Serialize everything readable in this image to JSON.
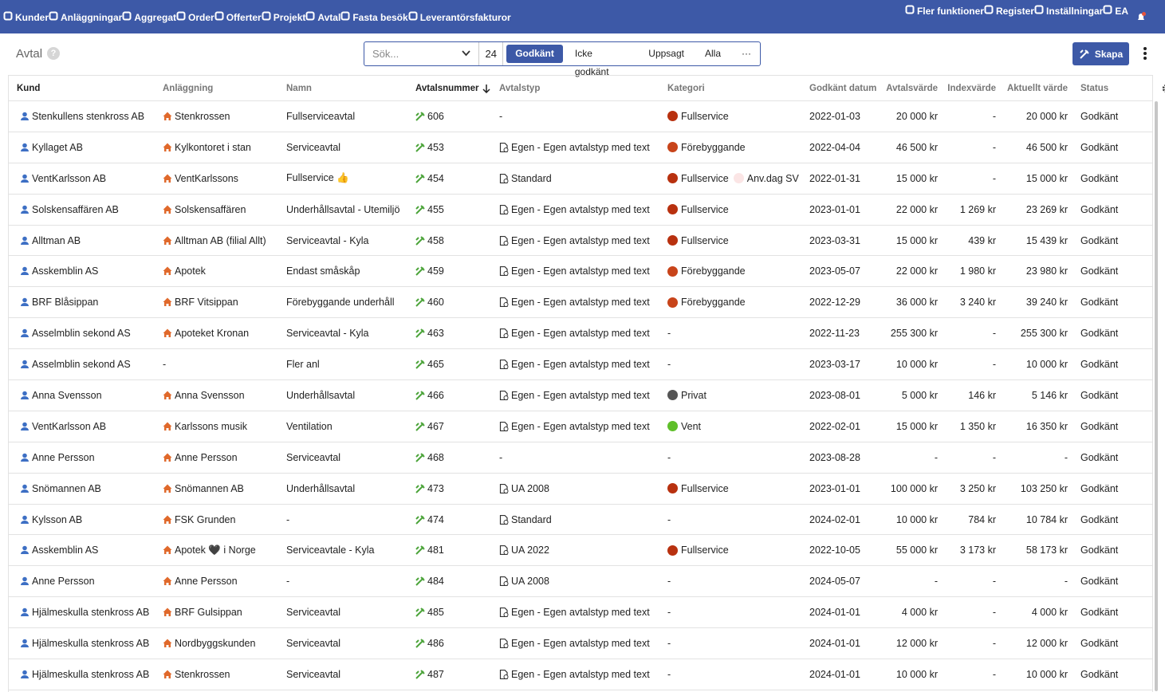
{
  "nav": {
    "left": [
      {
        "label": "Kunder"
      },
      {
        "label": "Anläggningar"
      },
      {
        "label": "Aggregat"
      },
      {
        "label": "Order"
      },
      {
        "label": "Offerter"
      },
      {
        "label": "Projekt"
      },
      {
        "label": "Avtal",
        "active": true
      },
      {
        "label": "Fasta besök"
      },
      {
        "label": "Leverantörsfakturor"
      }
    ],
    "right": [
      {
        "label": "Fler funktioner"
      },
      {
        "label": "Register"
      },
      {
        "label": "Inställningar"
      },
      {
        "label": "EA"
      }
    ]
  },
  "toolbar": {
    "title": "Avtal",
    "help": "?",
    "search_placeholder": "Sök...",
    "count": "24",
    "tabs": [
      {
        "label": "Godkänt",
        "active": true
      },
      {
        "label": "Icke godkänt"
      },
      {
        "label": "Uppsagt"
      },
      {
        "label": "Alla"
      },
      {
        "label": "···"
      }
    ],
    "create": "Skapa"
  },
  "table": {
    "headers": [
      "Kund",
      "Anläggning",
      "Namn",
      "Avtalsnummer",
      "Avtalstyp",
      "Kategori",
      "Godkänt datum",
      "Avtalsvärde",
      "Indexvärde",
      "Aktuellt värde",
      "Status"
    ],
    "rows": [
      {
        "kund": "Stenkullens stenkross AB",
        "anlaggning": "Stenkrossen",
        "namn": "Fullserviceavtal",
        "nummer": "606",
        "typ": "-",
        "kategori": [
          {
            "label": "Fullservice",
            "color": "#b8310f"
          }
        ],
        "datum": "2022-01-03",
        "avtalsvarde": "20 000 kr",
        "indexvarde": "-",
        "aktuellt": "20 000 kr",
        "status": "Godkänt"
      },
      {
        "kund": "Kyllaget AB",
        "anlaggning": "Kylkontoret i stan",
        "namn": "Serviceavtal",
        "nummer": "453",
        "typ": "Egen - Egen avtalstyp med text",
        "kategori": [
          {
            "label": "Förebyggande",
            "color": "#c8441a"
          }
        ],
        "datum": "2022-04-04",
        "avtalsvarde": "46 500 kr",
        "indexvarde": "-",
        "aktuellt": "46 500 kr",
        "status": "Godkänt"
      },
      {
        "kund": "VentKarlsson AB",
        "anlaggning": "VentKarlssons",
        "namn": "Fullservice 👍",
        "nummer": "454",
        "typ": "Standard",
        "kategori": [
          {
            "label": "Fullservice",
            "color": "#b8310f"
          },
          {
            "label": "Anv.dag SV",
            "color": "#fbe5e5"
          }
        ],
        "datum": "2022-01-31",
        "avtalsvarde": "15 000 kr",
        "indexvarde": "-",
        "aktuellt": "15 000 kr",
        "status": "Godkänt"
      },
      {
        "kund": "Solskensaffären AB",
        "anlaggning": "Solskensaffären",
        "namn": "Underhållsavtal - Utemiljö",
        "nummer": "455",
        "typ": "Egen - Egen avtalstyp med text",
        "kategori": [
          {
            "label": "Fullservice",
            "color": "#b8310f"
          }
        ],
        "datum": "2023-01-01",
        "avtalsvarde": "22 000 kr",
        "indexvarde": "1 269 kr",
        "aktuellt": "23 269 kr",
        "status": "Godkänt"
      },
      {
        "kund": "Alltman AB",
        "anlaggning": "Alltman AB (filial Allt)",
        "namn": "Serviceavtal - Kyla",
        "nummer": "458",
        "typ": "Egen - Egen avtalstyp med text",
        "kategori": [
          {
            "label": "Fullservice",
            "color": "#b8310f"
          }
        ],
        "datum": "2023-03-31",
        "avtalsvarde": "15 000 kr",
        "indexvarde": "439 kr",
        "aktuellt": "15 439 kr",
        "status": "Godkänt"
      },
      {
        "kund": "Asskemblin AS",
        "anlaggning": "Apotek",
        "namn": "Endast småskåp",
        "nummer": "459",
        "typ": "Egen - Egen avtalstyp med text",
        "kategori": [
          {
            "label": "Förebyggande",
            "color": "#c8441a"
          }
        ],
        "datum": "2023-05-07",
        "avtalsvarde": "22 000 kr",
        "indexvarde": "1 980 kr",
        "aktuellt": "23 980 kr",
        "status": "Godkänt"
      },
      {
        "kund": "BRF Blåsippan",
        "anlaggning": "BRF Vitsippan",
        "namn": "Förebyggande underhåll",
        "nummer": "460",
        "typ": "Egen - Egen avtalstyp med text",
        "kategori": [
          {
            "label": "Förebyggande",
            "color": "#c8441a"
          }
        ],
        "datum": "2022-12-29",
        "avtalsvarde": "36 000 kr",
        "indexvarde": "3 240 kr",
        "aktuellt": "39 240 kr",
        "status": "Godkänt"
      },
      {
        "kund": "Asselmblin sekond AS",
        "anlaggning": "Apoteket Kronan",
        "namn": "Serviceavtal - Kyla",
        "nummer": "463",
        "typ": "Egen - Egen avtalstyp med text",
        "kategori": "-",
        "datum": "2022-11-23",
        "avtalsvarde": "255 300 kr",
        "indexvarde": "-",
        "aktuellt": "255 300 kr",
        "status": "Godkänt"
      },
      {
        "kund": "Asselmblin sekond AS",
        "anlaggning": "-",
        "namn": "Fler anl",
        "nummer": "465",
        "typ": "Egen - Egen avtalstyp med text",
        "kategori": "-",
        "datum": "2023-03-17",
        "avtalsvarde": "10 000 kr",
        "indexvarde": "-",
        "aktuellt": "10 000 kr",
        "status": "Godkänt"
      },
      {
        "kund": "Anna Svensson",
        "anlaggning": "Anna Svensson",
        "namn": "Underhållsavtal",
        "nummer": "466",
        "typ": "Egen - Egen avtalstyp med text",
        "kategori": [
          {
            "label": "Privat",
            "color": "#555555"
          }
        ],
        "datum": "2023-08-01",
        "avtalsvarde": "5 000 kr",
        "indexvarde": "146 kr",
        "aktuellt": "5 146 kr",
        "status": "Godkänt"
      },
      {
        "kund": "VentKarlsson AB",
        "anlaggning": "Karlssons musik",
        "namn": "Ventilation",
        "nummer": "467",
        "typ": "Egen - Egen avtalstyp med text",
        "kategori": [
          {
            "label": "Vent",
            "color": "#5fbf2a"
          }
        ],
        "datum": "2022-02-01",
        "avtalsvarde": "15 000 kr",
        "indexvarde": "1 350 kr",
        "aktuellt": "16 350 kr",
        "status": "Godkänt"
      },
      {
        "kund": "Anne Persson",
        "anlaggning": "Anne Persson",
        "namn": "Serviceavtal",
        "nummer": "468",
        "typ": "-",
        "kategori": "-",
        "datum": "2023-08-28",
        "avtalsvarde": "-",
        "indexvarde": "-",
        "aktuellt": "-",
        "status": "Godkänt"
      },
      {
        "kund": "Snömannen AB",
        "anlaggning": "Snömannen AB",
        "namn": "Underhållsavtal",
        "nummer": "473",
        "typ": "UA 2008",
        "kategori": [
          {
            "label": "Fullservice",
            "color": "#b8310f"
          }
        ],
        "datum": "2023-01-01",
        "avtalsvarde": "100 000 kr",
        "indexvarde": "3 250 kr",
        "aktuellt": "103 250 kr",
        "status": "Godkänt"
      },
      {
        "kund": "Kylsson AB",
        "anlaggning": "FSK Grunden",
        "namn": "-",
        "nummer": "474",
        "typ": "Standard",
        "kategori": "-",
        "datum": "2024-02-01",
        "avtalsvarde": "10 000 kr",
        "indexvarde": "784 kr",
        "aktuellt": "10 784 kr",
        "status": "Godkänt"
      },
      {
        "kund": "Asskemblin AS",
        "anlaggning": "Apotek 🖤 i Norge",
        "namn": "Serviceavtale - Kyla",
        "nummer": "481",
        "typ": "UA 2022",
        "kategori": [
          {
            "label": "Fullservice",
            "color": "#b8310f"
          }
        ],
        "datum": "2022-10-05",
        "avtalsvarde": "55 000 kr",
        "indexvarde": "3 173 kr",
        "aktuellt": "58 173 kr",
        "status": "Godkänt"
      },
      {
        "kund": "Anne Persson",
        "anlaggning": "Anne Persson",
        "namn": "-",
        "nummer": "484",
        "typ": "UA 2008",
        "kategori": "-",
        "datum": "2024-05-07",
        "avtalsvarde": "-",
        "indexvarde": "-",
        "aktuellt": "-",
        "status": "Godkänt"
      },
      {
        "kund": "Hjälmeskulla stenkross AB",
        "anlaggning": "BRF Gulsippan",
        "namn": "Serviceavtal",
        "nummer": "485",
        "typ": "Egen - Egen avtalstyp med text",
        "kategori": "-",
        "datum": "2024-01-01",
        "avtalsvarde": "4 000 kr",
        "indexvarde": "-",
        "aktuellt": "4 000 kr",
        "status": "Godkänt"
      },
      {
        "kund": "Hjälmeskulla stenkross AB",
        "anlaggning": "Nordbyggskunden",
        "namn": "Serviceavtal",
        "nummer": "486",
        "typ": "Egen - Egen avtalstyp med text",
        "kategori": "-",
        "datum": "2024-01-01",
        "avtalsvarde": "12 000 kr",
        "indexvarde": "-",
        "aktuellt": "12 000 kr",
        "status": "Godkänt"
      },
      {
        "kund": "Hjälmeskulla stenkross AB",
        "anlaggning": "Stenkrossen",
        "namn": "Serviceavtal",
        "nummer": "487",
        "typ": "Egen - Egen avtalstyp med text",
        "kategori": "-",
        "datum": "2024-01-01",
        "avtalsvarde": "10 000 kr",
        "indexvarde": "-",
        "aktuellt": "10 000 kr",
        "status": "Godkänt"
      }
    ]
  }
}
